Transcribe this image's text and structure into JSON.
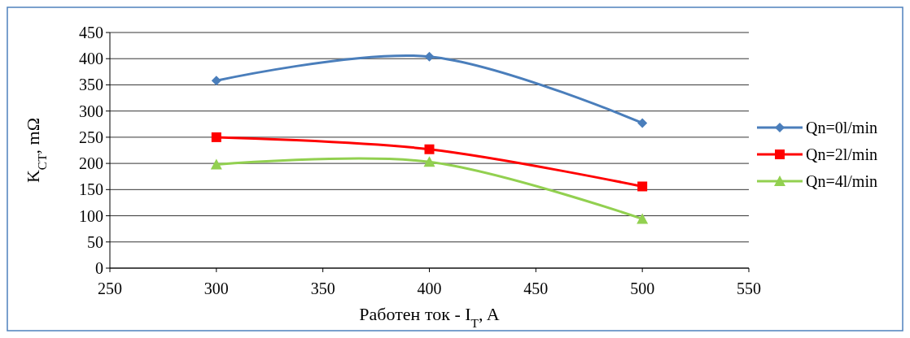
{
  "chart_data": {
    "type": "line",
    "xlabel": "Работен ток - I$_{T}$, A",
    "ylabel": "K$_{CT}$, mΩ",
    "x": [
      300,
      400,
      500
    ],
    "series": [
      {
        "name": "Qn=0l/min",
        "color": "#4a7ebb",
        "values": [
          358,
          404,
          277
        ],
        "marker": "diamond"
      },
      {
        "name": "Qn=2l/min",
        "color": "#ff0000",
        "values": [
          250,
          227,
          156
        ],
        "marker": "square"
      },
      {
        "name": "Qn=4l/min",
        "color": "#92d050",
        "values": [
          198,
          203,
          94
        ],
        "marker": "triangle"
      }
    ],
    "xlim": [
      250,
      550
    ],
    "xticks": [
      250,
      300,
      350,
      400,
      450,
      500,
      550
    ],
    "ylim": [
      0,
      450
    ],
    "yticks": [
      0,
      50,
      100,
      150,
      200,
      250,
      300,
      350,
      400,
      450
    ],
    "grid": "y",
    "legend": "right",
    "line_style": "solid"
  }
}
